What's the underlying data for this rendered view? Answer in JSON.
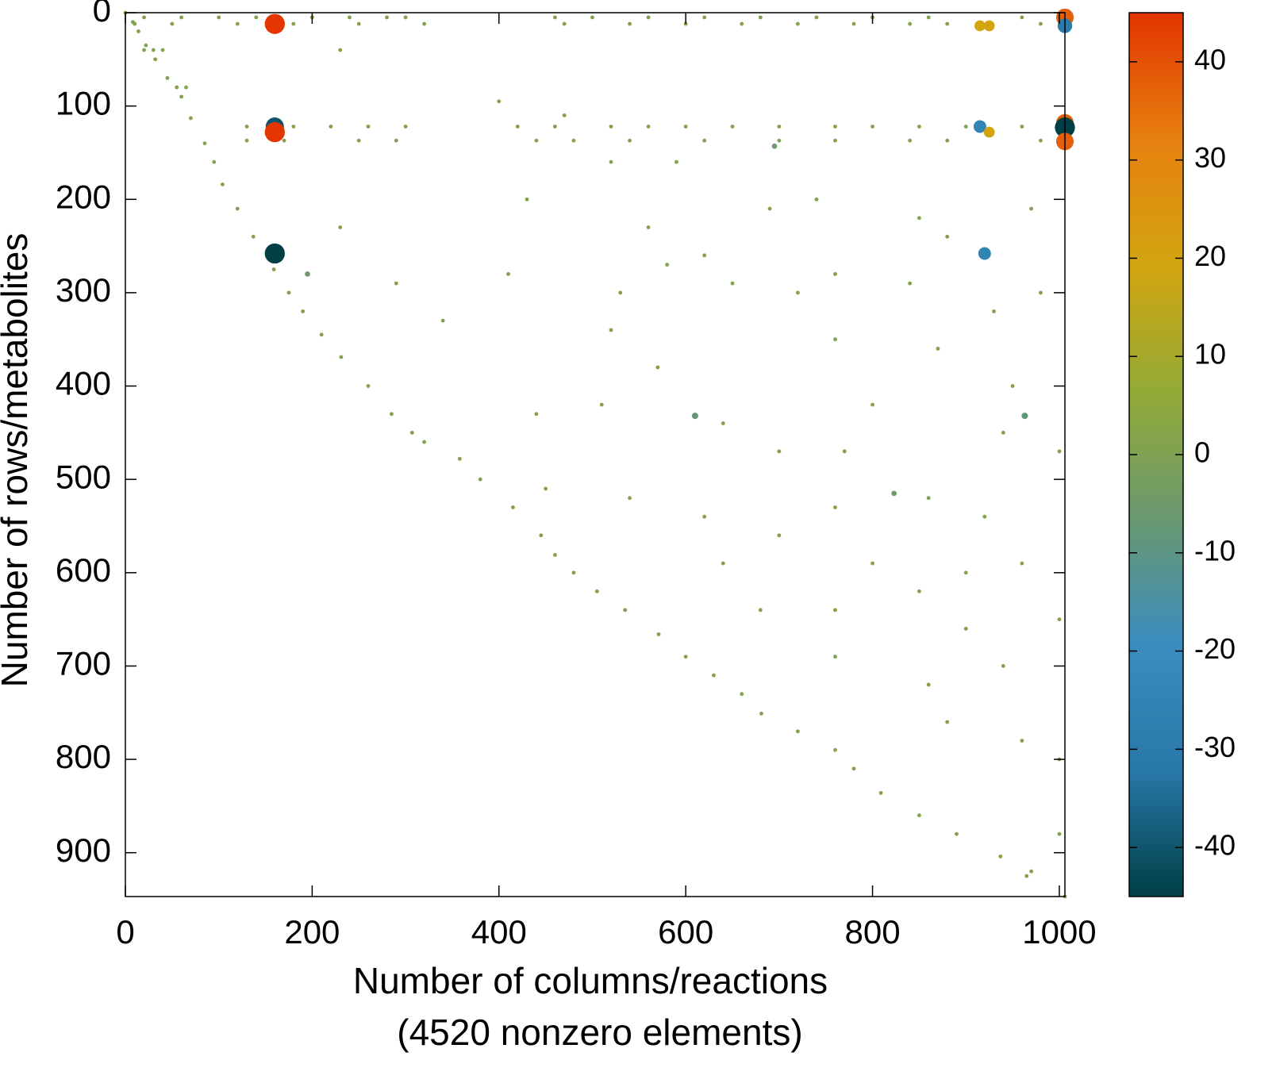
{
  "chart_data": {
    "type": "scatter",
    "ylabel": "Number of rows/metabolites",
    "xlabel": [
      "Number of columns/reactions",
      "(4520 nonzero elements)"
    ],
    "xlim": [
      0,
      1006
    ],
    "ylim": [
      0,
      947
    ],
    "y_inverted": true,
    "xticks": [
      0,
      200,
      400,
      600,
      800,
      1000
    ],
    "yticks": [
      0,
      100,
      200,
      300,
      400,
      500,
      600,
      700,
      800,
      900
    ],
    "clim": [
      -45,
      45
    ],
    "cticks": [
      -40,
      -30,
      -20,
      -10,
      0,
      10,
      20,
      30,
      40
    ],
    "colormap": [
      "#003f46",
      "#2878a8",
      "#3a8dc0",
      "#6a9870",
      "#93aa36",
      "#d2a510",
      "#e88010",
      "#e23500"
    ],
    "x": [
      0,
      8,
      14,
      22,
      32,
      45,
      60,
      70,
      85,
      95,
      104,
      120,
      137,
      159,
      175,
      190,
      210,
      231,
      260,
      285,
      307,
      320,
      358,
      380,
      415,
      445,
      460,
      480,
      505,
      535,
      571,
      600,
      630,
      660,
      681,
      720,
      760,
      780,
      809,
      850,
      890,
      937,
      965,
      1006,
      20,
      30,
      40,
      55,
      65,
      20,
      60,
      100,
      140,
      200,
      240,
      280,
      300,
      460,
      500,
      560,
      620,
      680,
      740,
      800,
      860,
      960,
      10,
      50,
      120,
      180,
      250,
      320,
      470,
      540,
      600,
      660,
      720,
      780,
      840,
      880,
      980,
      130,
      180,
      220,
      260,
      300,
      420,
      460,
      520,
      560,
      600,
      650,
      700,
      760,
      800,
      850,
      900,
      960,
      130,
      170,
      250,
      290,
      440,
      480,
      540,
      620,
      700,
      760,
      840,
      880,
      980,
      230,
      400,
      470,
      520,
      590,
      430,
      230,
      560,
      690,
      740,
      850,
      880,
      970,
      290,
      410,
      530,
      580,
      620,
      650,
      720,
      760,
      840,
      930,
      980,
      340,
      520,
      570,
      760,
      800,
      870,
      950,
      440,
      510,
      640,
      700,
      770,
      940,
      1000,
      450,
      540,
      620,
      700,
      760,
      860,
      920,
      640,
      800,
      900,
      960,
      680,
      760,
      850,
      900,
      1000,
      760,
      940,
      860,
      880,
      960,
      1000,
      970,
      1000,
      160,
      1006,
      1006,
      915,
      925,
      160,
      160,
      1006,
      1006,
      1006,
      915,
      925,
      160,
      920,
      695,
      610,
      963,
      823,
      195
    ],
    "y": [
      0,
      10,
      20,
      35,
      50,
      70,
      90,
      113,
      140,
      160,
      184,
      210,
      240,
      275,
      300,
      320,
      345,
      369,
      400,
      430,
      450,
      460,
      478,
      500,
      530,
      560,
      581,
      600,
      620,
      640,
      666,
      690,
      710,
      730,
      751,
      770,
      790,
      810,
      836,
      860,
      880,
      904,
      925,
      947,
      40,
      40,
      40,
      80,
      80,
      5,
      5,
      5,
      5,
      5,
      5,
      5,
      5,
      5,
      5,
      5,
      5,
      5,
      5,
      5,
      5,
      5,
      12,
      12,
      12,
      12,
      12,
      12,
      12,
      12,
      12,
      12,
      12,
      12,
      12,
      12,
      12,
      122,
      122,
      122,
      122,
      122,
      122,
      122,
      122,
      122,
      122,
      122,
      122,
      122,
      122,
      122,
      122,
      122,
      137,
      137,
      137,
      137,
      137,
      137,
      137,
      137,
      137,
      137,
      137,
      137,
      137,
      40,
      95,
      110,
      160,
      160,
      200,
      230,
      230,
      210,
      200,
      220,
      240,
      210,
      290,
      280,
      300,
      270,
      260,
      290,
      300,
      280,
      290,
      320,
      300,
      330,
      340,
      380,
      350,
      420,
      360,
      400,
      430,
      420,
      440,
      470,
      470,
      450,
      470,
      510,
      520,
      540,
      560,
      530,
      520,
      540,
      590,
      590,
      600,
      590,
      640,
      640,
      620,
      660,
      650,
      690,
      700,
      720,
      760,
      780,
      800,
      920,
      880,
      12,
      5,
      14,
      14,
      14,
      122,
      128,
      118,
      123,
      138,
      122,
      128,
      258,
      258,
      143,
      432,
      432,
      515,
      280
    ],
    "values": [
      1,
      1,
      1,
      1,
      1,
      1,
      1,
      1,
      1,
      1,
      1,
      1,
      1,
      1,
      1,
      1,
      1,
      1,
      1,
      1,
      1,
      1,
      1,
      1,
      1,
      1,
      1,
      1,
      1,
      1,
      1,
      1,
      1,
      1,
      1,
      1,
      1,
      1,
      1,
      1,
      1,
      1,
      1,
      1,
      1,
      1,
      1,
      1,
      1,
      1,
      1,
      1,
      1,
      1,
      1,
      1,
      1,
      1,
      1,
      1,
      1,
      1,
      1,
      1,
      1,
      1,
      1,
      1,
      1,
      1,
      1,
      1,
      1,
      1,
      1,
      1,
      1,
      1,
      1,
      1,
      1,
      1,
      1,
      1,
      1,
      1,
      1,
      1,
      1,
      1,
      1,
      1,
      1,
      1,
      1,
      1,
      1,
      1,
      1,
      1,
      1,
      1,
      1,
      1,
      1,
      1,
      1,
      1,
      1,
      1,
      1,
      1,
      1,
      1,
      1,
      1,
      1,
      1,
      1,
      1,
      1,
      1,
      1,
      1,
      1,
      1,
      1,
      1,
      1,
      1,
      1,
      1,
      1,
      1,
      1,
      1,
      1,
      1,
      1,
      1,
      1,
      1,
      1,
      1,
      1,
      1,
      1,
      1,
      1,
      1,
      1,
      1,
      1,
      1,
      1,
      1,
      1,
      1,
      1,
      1,
      1,
      1,
      1,
      1,
      1,
      1,
      1,
      1,
      1,
      1,
      1,
      1,
      1,
      45,
      38,
      -30,
      20,
      20,
      -40,
      45,
      38,
      -45,
      38,
      -25,
      20,
      -45,
      -25,
      -5,
      -8,
      -8,
      -5,
      -5
    ]
  }
}
